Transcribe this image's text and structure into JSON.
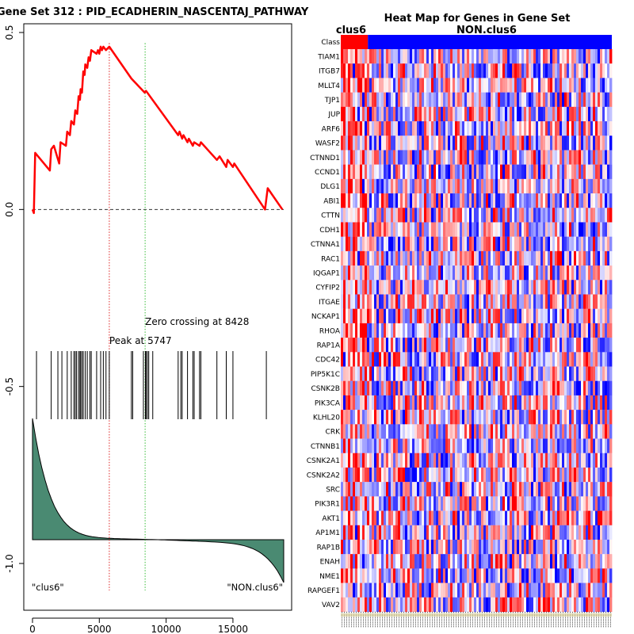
{
  "chart_data": [
    {
      "type": "line",
      "title": "Gene Set  312 : PID_ECADHERIN_NASCENTAJ_PATHWAY",
      "xlim": [
        0,
        18800
      ],
      "ylim": [
        -1.1,
        0.52
      ],
      "xticks": [
        0,
        5000,
        10000,
        15000
      ],
      "xtick_labels": [
        "0",
        "5000",
        "10000",
        "15000"
      ],
      "yticks": [
        0.5,
        0.0,
        -0.5,
        -1.0
      ],
      "ytick_labels": [
        "0.5",
        "0.0",
        "-0.5",
        "-1.0"
      ],
      "peak_position": 5747,
      "peak_label": "Peak at 5747",
      "zero_crossing": 8428,
      "zero_crossing_label": "Zero crossing at 8428",
      "left_class_label": "\"clus6\"",
      "right_class_label": "\"NON.clus6\"",
      "line_color": "#ff0000",
      "peak_line_color": "#dd2222",
      "zero_line_color": "#33bb33",
      "rank_fill_color": "#4a8a72",
      "running_es": [
        [
          0,
          0.0
        ],
        [
          100,
          -0.01
        ],
        [
          200,
          0.16
        ],
        [
          1300,
          0.11
        ],
        [
          1400,
          0.17
        ],
        [
          1600,
          0.18
        ],
        [
          2000,
          0.13
        ],
        [
          2100,
          0.19
        ],
        [
          2500,
          0.18
        ],
        [
          2600,
          0.22
        ],
        [
          2800,
          0.21
        ],
        [
          2900,
          0.25
        ],
        [
          3100,
          0.24
        ],
        [
          3200,
          0.28
        ],
        [
          3350,
          0.27
        ],
        [
          3450,
          0.32
        ],
        [
          3550,
          0.31
        ],
        [
          3600,
          0.34
        ],
        [
          3700,
          0.33
        ],
        [
          3800,
          0.39
        ],
        [
          3900,
          0.38
        ],
        [
          3950,
          0.41
        ],
        [
          4100,
          0.4
        ],
        [
          4200,
          0.43
        ],
        [
          4300,
          0.42
        ],
        [
          4400,
          0.45
        ],
        [
          4800,
          0.44
        ],
        [
          4900,
          0.45
        ],
        [
          5000,
          0.44
        ],
        [
          5100,
          0.46
        ],
        [
          5200,
          0.45
        ],
        [
          5300,
          0.46
        ],
        [
          5500,
          0.45
        ],
        [
          5747,
          0.46
        ],
        [
          7400,
          0.37
        ],
        [
          8400,
          0.33
        ],
        [
          8500,
          0.335
        ],
        [
          10900,
          0.21
        ],
        [
          11000,
          0.22
        ],
        [
          11200,
          0.2
        ],
        [
          11300,
          0.21
        ],
        [
          11600,
          0.19
        ],
        [
          11700,
          0.2
        ],
        [
          12000,
          0.18
        ],
        [
          12100,
          0.19
        ],
        [
          12500,
          0.18
        ],
        [
          12600,
          0.19
        ],
        [
          13800,
          0.14
        ],
        [
          14000,
          0.15
        ],
        [
          14500,
          0.12
        ],
        [
          14600,
          0.14
        ],
        [
          15000,
          0.12
        ],
        [
          15100,
          0.13
        ],
        [
          17400,
          0.0
        ],
        [
          17600,
          0.06
        ],
        [
          18700,
          0.0
        ]
      ],
      "hit_positions": [
        300,
        1400,
        1900,
        2200,
        2600,
        2900,
        3100,
        3200,
        3300,
        3450,
        3550,
        3600,
        3700,
        3800,
        3950,
        4100,
        4300,
        4400,
        4800,
        5100,
        5300,
        5500,
        5747,
        7400,
        7500,
        8300,
        8450,
        8500,
        8600,
        8700,
        9000,
        10900,
        11100,
        11200,
        11600,
        12000,
        12100,
        12500,
        12600,
        13800,
        14500,
        15000,
        17500
      ]
    },
    {
      "type": "heatmap",
      "title": "Heat Map for Genes in Gene Set",
      "class_row_label": "Class",
      "class_labels": [
        "clus6",
        "NON.clus6"
      ],
      "class_colors": [
        "#ff0000",
        "#0000ff"
      ],
      "class_split_fraction": 0.1,
      "genes": [
        "TIAM1",
        "ITGB7",
        "MLLT4",
        "TJP1",
        "JUP",
        "ARF6",
        "WASF2",
        "CTNND1",
        "CCND1",
        "DLG1",
        "ABI1",
        "CTTN",
        "CDH1",
        "CTNNA1",
        "RAC1",
        "IQGAP1",
        "CYFIP2",
        "ITGAE",
        "NCKAP1",
        "RHOA",
        "RAP1A",
        "CDC42",
        "PIP5K1C",
        "CSNK2B",
        "PIK3CA",
        "KLHL20",
        "CRK",
        "CTNNB1",
        "CSNK2A1",
        "CSNK2A2",
        "SRC",
        "PIK3R1",
        "AKT1",
        "AP1M1",
        "RAP1B",
        "ENAH",
        "NME1",
        "RAPGEF1",
        "VAV2"
      ],
      "low_color": "#0000ff",
      "mid_color": "#ffffff",
      "high_color": "#ff0000"
    }
  ]
}
